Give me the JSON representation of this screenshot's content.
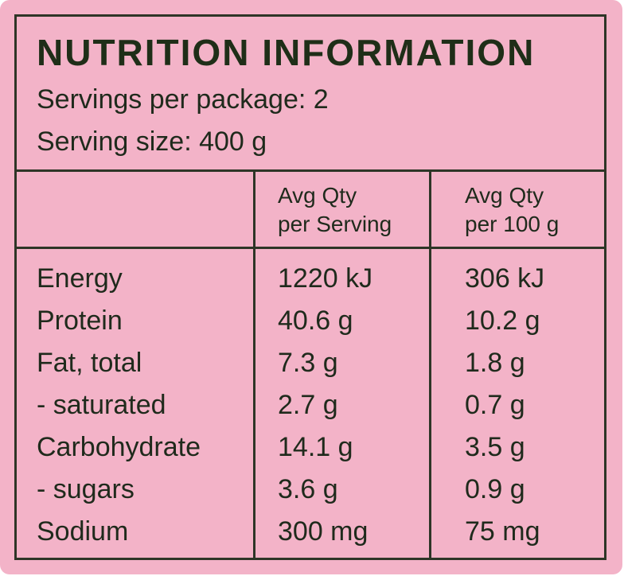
{
  "colors": {
    "background": "#f3b3c8",
    "ink": "#1f2a1c",
    "border": "#2e3527"
  },
  "label": {
    "title": "NUTRITION INFORMATION",
    "servings_per_package": "Servings per package: 2",
    "serving_size": "Serving size: 400 g",
    "columns": {
      "per_serving_line1": "Avg Qty",
      "per_serving_line2": "per Serving",
      "per_100g_line1": "Avg Qty",
      "per_100g_line2": "per 100 g"
    },
    "rows": [
      {
        "name": "Energy",
        "per_serving": "1220 kJ",
        "per_100g": "306 kJ"
      },
      {
        "name": "Protein",
        "per_serving": "40.6 g",
        "per_100g": "10.2 g"
      },
      {
        "name": "Fat, total",
        "per_serving": "7.3 g",
        "per_100g": "1.8 g"
      },
      {
        "name": "- saturated",
        "per_serving": "2.7 g",
        "per_100g": "0.7 g"
      },
      {
        "name": "Carbohydrate",
        "per_serving": "14.1 g",
        "per_100g": "3.5 g"
      },
      {
        "name": "- sugars",
        "per_serving": "3.6 g",
        "per_100g": "0.9 g"
      },
      {
        "name": "Sodium",
        "per_serving": "300 mg",
        "per_100g": "75 mg"
      }
    ]
  }
}
